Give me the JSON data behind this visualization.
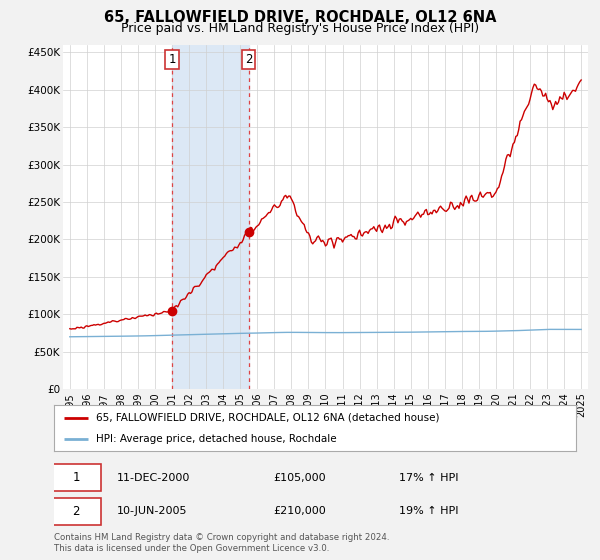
{
  "title": "65, FALLOWFIELD DRIVE, ROCHDALE, OL12 6NA",
  "subtitle": "Price paid vs. HM Land Registry's House Price Index (HPI)",
  "ylim": [
    0,
    460000
  ],
  "yticks": [
    0,
    50000,
    100000,
    150000,
    200000,
    250000,
    300000,
    350000,
    400000,
    450000
  ],
  "ytick_labels": [
    "£0",
    "£50K",
    "£100K",
    "£150K",
    "£200K",
    "£250K",
    "£300K",
    "£350K",
    "£400K",
    "£450K"
  ],
  "xlim_start": 1994.6,
  "xlim_end": 2025.4,
  "xticks": [
    1995,
    1996,
    1997,
    1998,
    1999,
    2000,
    2001,
    2002,
    2003,
    2004,
    2005,
    2006,
    2007,
    2008,
    2009,
    2010,
    2011,
    2012,
    2013,
    2014,
    2015,
    2016,
    2017,
    2018,
    2019,
    2020,
    2021,
    2022,
    2023,
    2024,
    2025
  ],
  "house_color": "#cc0000",
  "hpi_color": "#7ab0d4",
  "bg_color": "#f2f2f2",
  "plot_bg": "#ffffff",
  "shade_color": "#dce8f5",
  "grid_color": "#d0d0d0",
  "vline_color": "#dd4444",
  "legend_label_house": "65, FALLOWFIELD DRIVE, ROCHDALE, OL12 6NA (detached house)",
  "legend_label_hpi": "HPI: Average price, detached house, Rochdale",
  "marker1_date": 2001.0,
  "marker1_price": 105000,
  "marker1_label": "1",
  "marker1_text_date": "11-DEC-2000",
  "marker1_text_price": "£105,000",
  "marker1_text_hpi": "17% ↑ HPI",
  "marker2_date": 2005.5,
  "marker2_price": 210000,
  "marker2_label": "2",
  "marker2_text_date": "10-JUN-2005",
  "marker2_text_price": "£210,000",
  "marker2_text_hpi": "19% ↑ HPI",
  "footer": "Contains HM Land Registry data © Crown copyright and database right 2024.\nThis data is licensed under the Open Government Licence v3.0."
}
